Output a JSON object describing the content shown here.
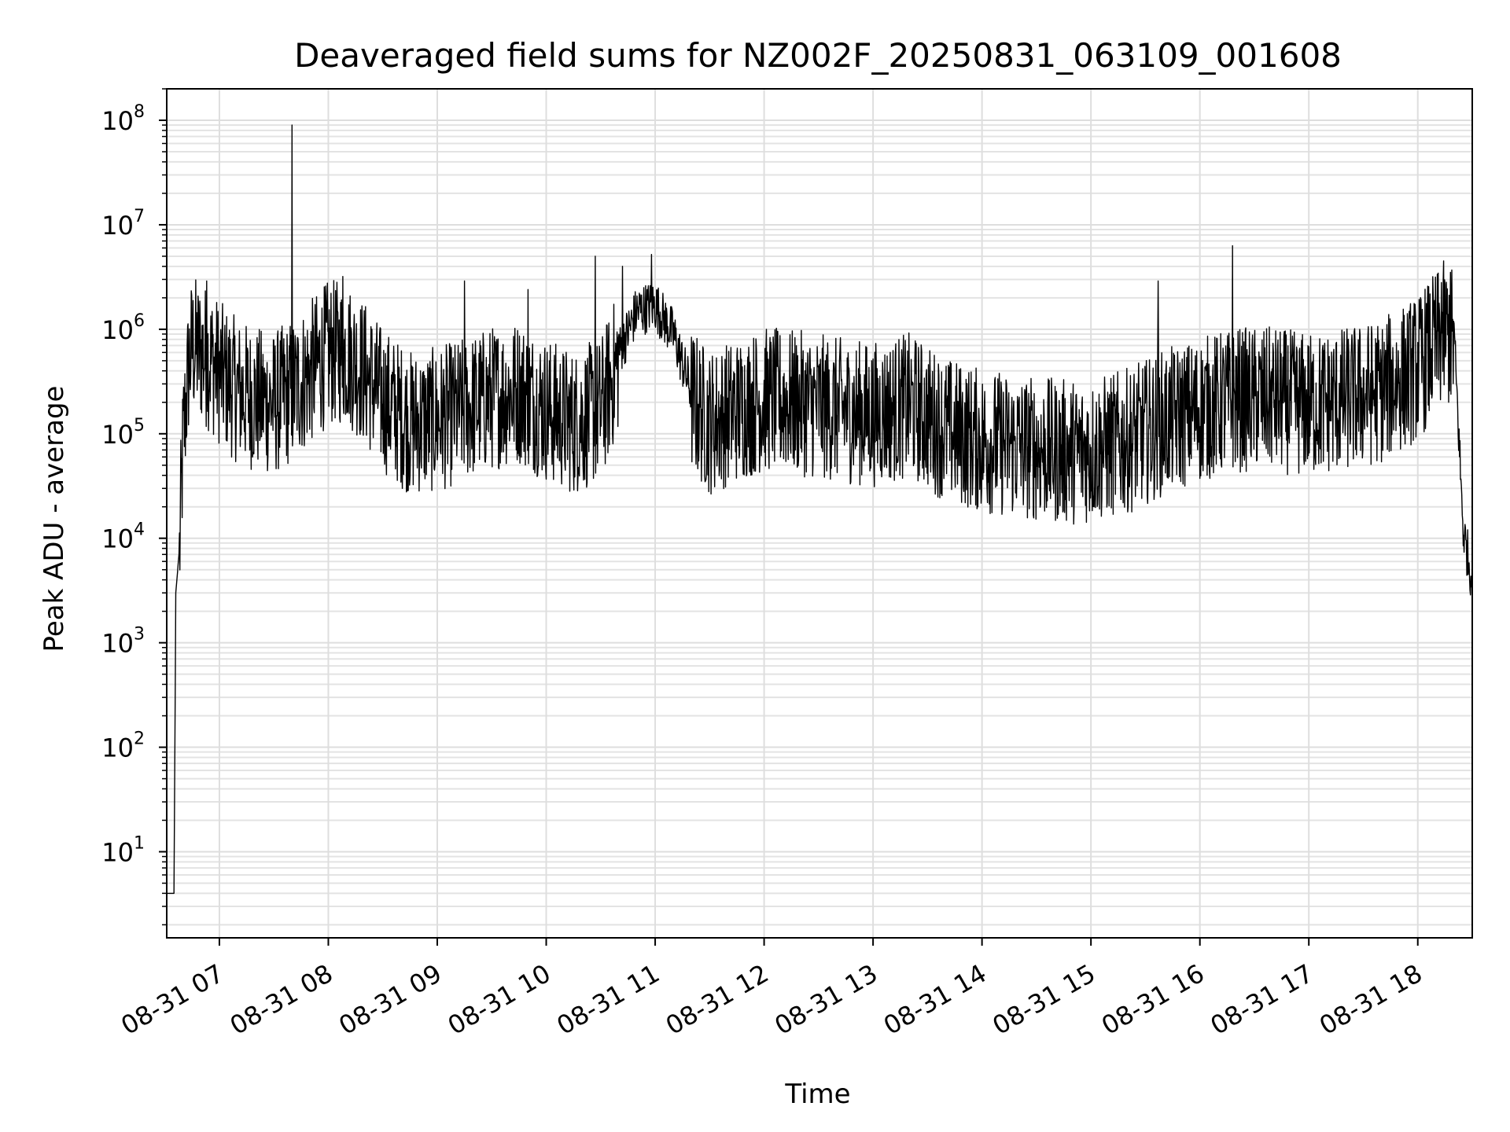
{
  "chart_data": {
    "type": "line",
    "title": "Deaveraged field sums for NZ002F_20250831_063109_001608",
    "xlabel": "Time",
    "ylabel": "Peak ADU - average",
    "yscale": "log",
    "ylim": [
      1.5,
      200000000
    ],
    "xlim": [
      "2025-08-31 06:31",
      "2025-08-31 18:30"
    ],
    "grid": true,
    "legend": "none",
    "line_color": "#000000",
    "x_ticks": [
      {
        "value": "2025-08-31 07:00",
        "label": "08-31 07"
      },
      {
        "value": "2025-08-31 08:00",
        "label": "08-31 08"
      },
      {
        "value": "2025-08-31 09:00",
        "label": "08-31 09"
      },
      {
        "value": "2025-08-31 10:00",
        "label": "08-31 10"
      },
      {
        "value": "2025-08-31 11:00",
        "label": "08-31 11"
      },
      {
        "value": "2025-08-31 12:00",
        "label": "08-31 12"
      },
      {
        "value": "2025-08-31 13:00",
        "label": "08-31 13"
      },
      {
        "value": "2025-08-31 14:00",
        "label": "08-31 14"
      },
      {
        "value": "2025-08-31 15:00",
        "label": "08-31 15"
      },
      {
        "value": "2025-08-31 16:00",
        "label": "08-31 16"
      },
      {
        "value": "2025-08-31 17:00",
        "label": "08-31 17"
      },
      {
        "value": "2025-08-31 18:00",
        "label": "08-31 18"
      }
    ],
    "y_ticks": [
      {
        "value": 10,
        "base": "10",
        "exp": "1"
      },
      {
        "value": 100,
        "base": "10",
        "exp": "2"
      },
      {
        "value": 1000,
        "base": "10",
        "exp": "3"
      },
      {
        "value": 10000,
        "base": "10",
        "exp": "4"
      },
      {
        "value": 100000,
        "base": "10",
        "exp": "5"
      },
      {
        "value": 1000000,
        "base": "10",
        "exp": "6"
      },
      {
        "value": 10000000,
        "base": "10",
        "exp": "7"
      },
      {
        "value": 100000000,
        "base": "10",
        "exp": "8"
      }
    ],
    "series": [
      {
        "baseline": [
          [
            "2025-08-31 06:31",
            4
          ],
          [
            "2025-08-31 06:35",
            4
          ],
          [
            "2025-08-31 06:36",
            3000
          ],
          [
            "2025-08-31 06:38",
            8000
          ],
          [
            "2025-08-31 06:40",
            100000
          ],
          [
            "2025-08-31 06:43",
            500000
          ],
          [
            "2025-08-31 06:45",
            800000
          ],
          [
            "2025-08-31 06:50",
            700000
          ],
          [
            "2025-08-31 06:55",
            600000
          ],
          [
            "2025-08-31 07:00",
            450000
          ],
          [
            "2025-08-31 07:10",
            300000
          ],
          [
            "2025-08-31 07:20",
            250000
          ],
          [
            "2025-08-31 07:30",
            230000
          ],
          [
            "2025-08-31 07:40",
            300000
          ],
          [
            "2025-08-31 07:50",
            450000
          ],
          [
            "2025-08-31 08:00",
            700000
          ],
          [
            "2025-08-31 08:10",
            700000
          ],
          [
            "2025-08-31 08:20",
            450000
          ],
          [
            "2025-08-31 08:30",
            250000
          ],
          [
            "2025-08-31 08:45",
            150000
          ],
          [
            "2025-08-31 09:00",
            160000
          ],
          [
            "2025-08-31 09:15",
            200000
          ],
          [
            "2025-08-31 09:30",
            260000
          ],
          [
            "2025-08-31 09:45",
            300000
          ],
          [
            "2025-08-31 10:00",
            200000
          ],
          [
            "2025-08-31 10:15",
            150000
          ],
          [
            "2025-08-31 10:30",
            200000
          ],
          [
            "2025-08-31 10:40",
            600000
          ],
          [
            "2025-08-31 10:50",
            1500000
          ],
          [
            "2025-08-31 11:00",
            1700000
          ],
          [
            "2025-08-31 11:10",
            900000
          ],
          [
            "2025-08-31 11:20",
            250000
          ],
          [
            "2025-08-31 11:30",
            150000
          ],
          [
            "2025-08-31 11:45",
            200000
          ],
          [
            "2025-08-31 12:00",
            250000
          ],
          [
            "2025-08-31 12:20",
            230000
          ],
          [
            "2025-08-31 12:40",
            200000
          ],
          [
            "2025-08-31 13:00",
            180000
          ],
          [
            "2025-08-31 13:20",
            220000
          ],
          [
            "2025-08-31 13:40",
            130000
          ],
          [
            "2025-08-31 14:00",
            100000
          ],
          [
            "2025-08-31 14:20",
            90000
          ],
          [
            "2025-08-31 14:40",
            80000
          ],
          [
            "2025-08-31 15:00",
            80000
          ],
          [
            "2025-08-31 15:20",
            100000
          ],
          [
            "2025-08-31 15:40",
            150000
          ],
          [
            "2025-08-31 16:00",
            200000
          ],
          [
            "2025-08-31 16:20",
            250000
          ],
          [
            "2025-08-31 16:40",
            250000
          ],
          [
            "2025-08-31 17:00",
            220000
          ],
          [
            "2025-08-31 17:20",
            250000
          ],
          [
            "2025-08-31 17:40",
            300000
          ],
          [
            "2025-08-31 18:00",
            500000
          ],
          [
            "2025-08-31 18:15",
            1100000
          ],
          [
            "2025-08-31 18:20",
            900000
          ],
          [
            "2025-08-31 18:25",
            12000
          ],
          [
            "2025-08-31 18:30",
            4000
          ]
        ],
        "spikes": [
          [
            "2025-08-31 06:53",
            2900000
          ],
          [
            "2025-08-31 07:40",
            90000000
          ],
          [
            "2025-08-31 08:08",
            3200000
          ],
          [
            "2025-08-31 09:15",
            2900000
          ],
          [
            "2025-08-31 09:50",
            2400000
          ],
          [
            "2025-08-31 10:27",
            5000000
          ],
          [
            "2025-08-31 10:42",
            4000000
          ],
          [
            "2025-08-31 10:58",
            5200000
          ],
          [
            "2025-08-31 15:37",
            2900000
          ],
          [
            "2025-08-31 16:18",
            6300000
          ],
          [
            "2025-08-31 18:13",
            2800000
          ],
          [
            "2025-08-31 18:18",
            3500000
          ]
        ]
      }
    ]
  }
}
